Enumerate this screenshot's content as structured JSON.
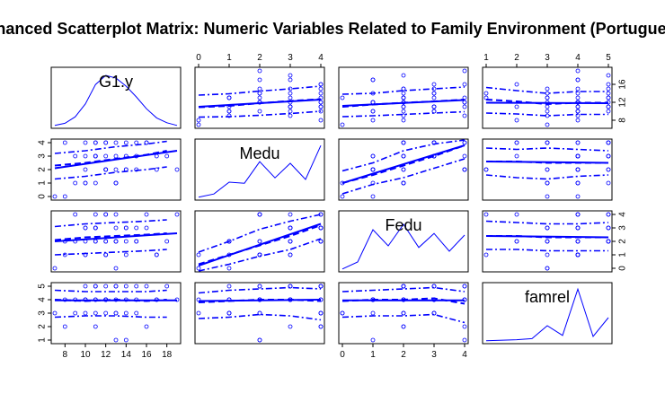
{
  "chart_data": {
    "type": "scatter",
    "title": "Enhanced Scatterplot Matrix: Numeric Variables Related to Family Environment (Portuguese)",
    "variables": [
      "G1.y",
      "Medu",
      "Fedu",
      "famrel"
    ],
    "grid": false,
    "colors": {
      "points": "#0000ff",
      "lines": "#0000ff",
      "frame": "#000000"
    },
    "axes": {
      "G1.y": {
        "range": [
          7,
          19
        ],
        "ticks": [
          8,
          10,
          12,
          14,
          16,
          18
        ],
        "right_ticks": [
          8,
          12,
          16
        ]
      },
      "Medu": {
        "range": [
          0,
          4
        ],
        "ticks": [
          0,
          1,
          2,
          3,
          4
        ]
      },
      "Fedu": {
        "range": [
          0,
          4
        ],
        "ticks": [
          0,
          1,
          2,
          3,
          4
        ]
      },
      "famrel": {
        "range": [
          1,
          5
        ],
        "ticks": [
          1,
          2,
          3,
          4,
          5
        ]
      }
    },
    "density": {
      "G1.y": [
        [
          7,
          0.02
        ],
        [
          8,
          0.06
        ],
        [
          9,
          0.18
        ],
        [
          10,
          0.42
        ],
        [
          11,
          0.78
        ],
        [
          12,
          0.95
        ],
        [
          13,
          0.9
        ],
        [
          14,
          0.75
        ],
        [
          15,
          0.55
        ],
        [
          16,
          0.33
        ],
        [
          17,
          0.16
        ],
        [
          18,
          0.07
        ],
        [
          19,
          0.02
        ]
      ],
      "Medu": [
        [
          0,
          0.02
        ],
        [
          0.5,
          0.08
        ],
        [
          1,
          0.3
        ],
        [
          1.5,
          0.28
        ],
        [
          2,
          0.68
        ],
        [
          2.5,
          0.38
        ],
        [
          3,
          0.65
        ],
        [
          3.5,
          0.35
        ],
        [
          4,
          0.98
        ]
      ],
      "Fedu": [
        [
          0,
          0.02
        ],
        [
          0.5,
          0.15
        ],
        [
          1,
          0.75
        ],
        [
          1.5,
          0.45
        ],
        [
          2,
          0.85
        ],
        [
          2.5,
          0.42
        ],
        [
          3,
          0.68
        ],
        [
          3.5,
          0.35
        ],
        [
          4,
          0.65
        ]
      ],
      "famrel": [
        [
          1,
          0.02
        ],
        [
          2,
          0.04
        ],
        [
          2.5,
          0.06
        ],
        [
          3,
          0.3
        ],
        [
          3.5,
          0.12
        ],
        [
          4,
          0.98
        ],
        [
          4.5,
          0.1
        ],
        [
          5,
          0.45
        ]
      ]
    },
    "pairs": [
      {
        "x": "Medu",
        "y": "G1.y",
        "fit": [
          [
            0,
            11.0
          ],
          [
            4,
            12.6
          ]
        ],
        "smooth": [
          [
            0,
            10.9
          ],
          [
            1,
            11.2
          ],
          [
            2,
            11.8
          ],
          [
            3,
            12.3
          ],
          [
            4,
            12.7
          ]
        ],
        "band_upper": [
          [
            0,
            13.6
          ],
          [
            1,
            13.9
          ],
          [
            2,
            14.5
          ],
          [
            3,
            15.0
          ],
          [
            4,
            15.6
          ]
        ],
        "band_lower": [
          [
            0,
            8.7
          ],
          [
            1,
            8.8
          ],
          [
            2,
            9.1
          ],
          [
            3,
            9.5
          ],
          [
            4,
            10.0
          ]
        ]
      },
      {
        "x": "Fedu",
        "y": "G1.y",
        "fit": [
          [
            0,
            11.2
          ],
          [
            4,
            12.5
          ]
        ],
        "smooth": [
          [
            0,
            11.0
          ],
          [
            1,
            11.5
          ],
          [
            2,
            11.9
          ],
          [
            3,
            12.2
          ],
          [
            4,
            12.6
          ]
        ],
        "band_upper": [
          [
            0,
            13.8
          ],
          [
            1,
            14.0
          ],
          [
            2,
            14.6
          ],
          [
            3,
            15.0
          ],
          [
            4,
            15.4
          ]
        ],
        "band_lower": [
          [
            0,
            8.8
          ],
          [
            1,
            9.0
          ],
          [
            2,
            9.3
          ],
          [
            3,
            9.6
          ],
          [
            4,
            9.9
          ]
        ]
      },
      {
        "x": "famrel",
        "y": "G1.y",
        "fit": [
          [
            1,
            11.9
          ],
          [
            5,
            11.8
          ]
        ],
        "smooth": [
          [
            1,
            12.6
          ],
          [
            2,
            12.2
          ],
          [
            3,
            11.6
          ],
          [
            4,
            11.9
          ],
          [
            5,
            11.9
          ]
        ],
        "band_upper": [
          [
            1,
            15.3
          ],
          [
            2,
            14.6
          ],
          [
            3,
            14.0
          ],
          [
            4,
            14.4
          ],
          [
            5,
            14.4
          ]
        ],
        "band_lower": [
          [
            1,
            9.6
          ],
          [
            2,
            9.4
          ],
          [
            3,
            9.0
          ],
          [
            4,
            9.3
          ],
          [
            5,
            9.3
          ]
        ]
      },
      {
        "x": "G1.y",
        "y": "Medu",
        "fit": [
          [
            7,
            2.1
          ],
          [
            19,
            3.4
          ]
        ],
        "smooth": [
          [
            7,
            2.3
          ],
          [
            10,
            2.5
          ],
          [
            13,
            2.8
          ],
          [
            16,
            3.1
          ],
          [
            18,
            3.4
          ]
        ],
        "band_upper": [
          [
            7,
            3.2
          ],
          [
            10,
            3.4
          ],
          [
            13,
            3.7
          ],
          [
            16,
            3.9
          ],
          [
            18,
            4.1
          ]
        ],
        "band_lower": [
          [
            7,
            1.3
          ],
          [
            10,
            1.5
          ],
          [
            13,
            1.8
          ],
          [
            16,
            2.0
          ],
          [
            18,
            2.2
          ]
        ]
      },
      {
        "x": "Fedu",
        "y": "Medu",
        "fit": [
          [
            0,
            1.0
          ],
          [
            4,
            3.8
          ]
        ],
        "smooth": [
          [
            0,
            1.0
          ],
          [
            1,
            1.6
          ],
          [
            2,
            2.3
          ],
          [
            3,
            3.0
          ],
          [
            4,
            3.8
          ]
        ],
        "band_upper": [
          [
            0,
            1.9
          ],
          [
            1,
            2.5
          ],
          [
            2,
            3.4
          ],
          [
            3,
            3.9
          ],
          [
            4,
            4.2
          ]
        ],
        "band_lower": [
          [
            0,
            0.2
          ],
          [
            1,
            0.9
          ],
          [
            2,
            1.4
          ],
          [
            3,
            2.1
          ],
          [
            4,
            2.8
          ]
        ]
      },
      {
        "x": "famrel",
        "y": "Medu",
        "fit": [
          [
            1,
            2.6
          ],
          [
            5,
            2.5
          ]
        ],
        "smooth": [
          [
            1,
            2.6
          ],
          [
            2,
            2.6
          ],
          [
            3,
            2.5
          ],
          [
            4,
            2.5
          ],
          [
            5,
            2.5
          ]
        ],
        "band_upper": [
          [
            1,
            3.6
          ],
          [
            2,
            3.5
          ],
          [
            3,
            3.6
          ],
          [
            4,
            3.5
          ],
          [
            5,
            3.4
          ]
        ],
        "band_lower": [
          [
            1,
            1.6
          ],
          [
            2,
            1.4
          ],
          [
            3,
            1.3
          ],
          [
            4,
            1.5
          ],
          [
            5,
            1.6
          ]
        ]
      },
      {
        "x": "G1.y",
        "y": "Fedu",
        "fit": [
          [
            7,
            2.0
          ],
          [
            19,
            2.6
          ]
        ],
        "smooth": [
          [
            7,
            2.1
          ],
          [
            10,
            2.3
          ],
          [
            13,
            2.4
          ],
          [
            16,
            2.5
          ],
          [
            18,
            2.6
          ]
        ],
        "band_upper": [
          [
            7,
            3.1
          ],
          [
            10,
            3.3
          ],
          [
            13,
            3.4
          ],
          [
            16,
            3.5
          ],
          [
            18,
            3.6
          ]
        ],
        "band_lower": [
          [
            7,
            1.0
          ],
          [
            10,
            1.1
          ],
          [
            13,
            1.2
          ],
          [
            16,
            1.3
          ],
          [
            18,
            1.4
          ]
        ]
      },
      {
        "x": "Medu",
        "y": "Fedu",
        "fit": [
          [
            0,
            0.2
          ],
          [
            4,
            3.3
          ]
        ],
        "smooth": [
          [
            0,
            0.3
          ],
          [
            1,
            1.0
          ],
          [
            2,
            1.7
          ],
          [
            3,
            2.4
          ],
          [
            4,
            3.2
          ]
        ],
        "band_upper": [
          [
            0,
            1.2
          ],
          [
            1,
            2.0
          ],
          [
            2,
            2.9
          ],
          [
            3,
            3.5
          ],
          [
            4,
            4.0
          ]
        ],
        "band_lower": [
          [
            0,
            -0.5
          ],
          [
            1,
            0.3
          ],
          [
            2,
            0.9
          ],
          [
            3,
            1.4
          ],
          [
            4,
            2.2
          ]
        ]
      },
      {
        "x": "famrel",
        "y": "Fedu",
        "fit": [
          [
            1,
            2.4
          ],
          [
            5,
            2.3
          ]
        ],
        "smooth": [
          [
            1,
            2.4
          ],
          [
            2,
            2.4
          ],
          [
            3,
            2.3
          ],
          [
            4,
            2.3
          ],
          [
            5,
            2.3
          ]
        ],
        "band_upper": [
          [
            1,
            3.5
          ],
          [
            2,
            3.4
          ],
          [
            3,
            3.3
          ],
          [
            4,
            3.3
          ],
          [
            5,
            3.4
          ]
        ],
        "band_lower": [
          [
            1,
            1.4
          ],
          [
            2,
            1.4
          ],
          [
            3,
            1.3
          ],
          [
            4,
            1.3
          ],
          [
            5,
            1.3
          ]
        ]
      },
      {
        "x": "G1.y",
        "y": "famrel",
        "fit": [
          [
            7,
            3.95
          ],
          [
            19,
            3.95
          ]
        ],
        "smooth": [
          [
            7,
            4.0
          ],
          [
            10,
            3.9
          ],
          [
            13,
            4.0
          ],
          [
            16,
            3.9
          ],
          [
            18,
            4.0
          ]
        ],
        "band_upper": [
          [
            7,
            4.7
          ],
          [
            10,
            4.6
          ],
          [
            13,
            4.6
          ],
          [
            16,
            4.6
          ],
          [
            18,
            4.7
          ]
        ],
        "band_lower": [
          [
            7,
            2.7
          ],
          [
            10,
            2.8
          ],
          [
            13,
            2.8
          ],
          [
            16,
            2.7
          ],
          [
            18,
            2.7
          ]
        ]
      },
      {
        "x": "Medu",
        "y": "famrel",
        "fit": [
          [
            0,
            3.9
          ],
          [
            4,
            4.0
          ]
        ],
        "smooth": [
          [
            0,
            3.8
          ],
          [
            1,
            3.9
          ],
          [
            2,
            4.0
          ],
          [
            3,
            4.0
          ],
          [
            4,
            3.9
          ]
        ],
        "band_upper": [
          [
            0,
            4.5
          ],
          [
            1,
            4.7
          ],
          [
            2,
            4.8
          ],
          [
            3,
            4.9
          ],
          [
            4,
            4.8
          ]
        ],
        "band_lower": [
          [
            0,
            2.6
          ],
          [
            1,
            2.7
          ],
          [
            2,
            2.9
          ],
          [
            3,
            2.8
          ],
          [
            4,
            2.5
          ]
        ]
      },
      {
        "x": "Fedu",
        "y": "famrel",
        "fit": [
          [
            0,
            3.95
          ],
          [
            4,
            3.95
          ]
        ],
        "smooth": [
          [
            0,
            3.9
          ],
          [
            1,
            4.0
          ],
          [
            2,
            4.0
          ],
          [
            3,
            4.1
          ],
          [
            4,
            3.7
          ]
        ],
        "band_upper": [
          [
            0,
            4.6
          ],
          [
            1,
            4.7
          ],
          [
            2,
            4.8
          ],
          [
            3,
            4.9
          ],
          [
            4,
            4.6
          ]
        ],
        "band_lower": [
          [
            0,
            2.7
          ],
          [
            1,
            2.8
          ],
          [
            2,
            2.8
          ],
          [
            3,
            2.9
          ],
          [
            4,
            2.3
          ]
        ]
      }
    ],
    "points": {
      "G1.y": [
        8,
        9,
        10,
        11,
        12,
        13,
        14,
        15,
        16,
        17,
        18,
        10,
        11,
        12,
        13,
        14,
        12,
        11,
        13,
        10,
        15,
        9,
        16,
        12,
        14,
        11,
        13,
        12,
        17,
        8,
        10,
        11,
        12,
        13,
        14,
        15,
        13,
        12,
        11,
        10,
        19,
        7
      ],
      "Medu": [
        0,
        1,
        2,
        3,
        4,
        1,
        2,
        3,
        4,
        2,
        3,
        4,
        1,
        2,
        3,
        4,
        2,
        3,
        4,
        1,
        2,
        3,
        4,
        4,
        2,
        3,
        1,
        2,
        3,
        4,
        3,
        4,
        2,
        1,
        3,
        4,
        2,
        3,
        4,
        1,
        2,
        0
      ],
      "Fedu": [
        1,
        2,
        1,
        3,
        2,
        0,
        2,
        3,
        4,
        1,
        2,
        3,
        2,
        1,
        2,
        3,
        4,
        2,
        3,
        1,
        2,
        4,
        3,
        2,
        1,
        3,
        2,
        4,
        1,
        2,
        3,
        4,
        1,
        2,
        3,
        2,
        4,
        1,
        3,
        2,
        4,
        0
      ],
      "famrel": [
        4,
        3,
        4,
        5,
        4,
        3,
        5,
        4,
        2,
        4,
        5,
        3,
        4,
        4,
        5,
        3,
        4,
        2,
        5,
        4,
        3,
        4,
        5,
        4,
        1,
        4,
        3,
        5,
        4,
        2,
        4,
        5,
        3,
        4,
        4,
        5,
        1,
        4,
        3,
        5,
        4,
        3
      ]
    }
  }
}
